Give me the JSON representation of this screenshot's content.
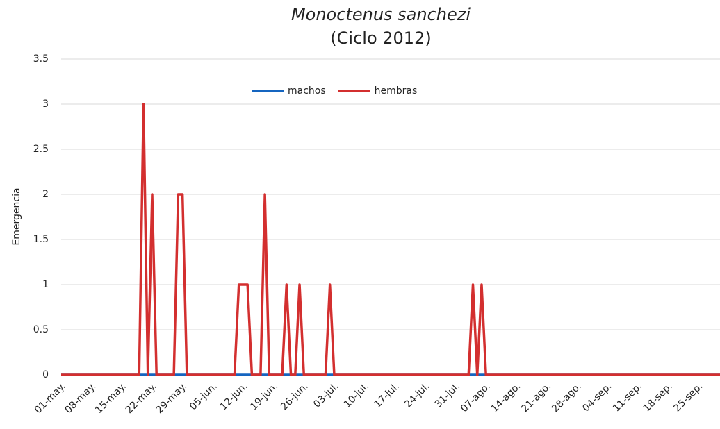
{
  "chart_data": {
    "type": "line",
    "title": "Monoctenus sanchezi",
    "subtitle": "(Ciclo 2012)",
    "y_label": "Emergencia",
    "categories": [
      "01-may.",
      null,
      null,
      null,
      null,
      null,
      null,
      "08-may.",
      null,
      null,
      null,
      null,
      null,
      null,
      "15-may.",
      null,
      null,
      null,
      null,
      null,
      null,
      "22-may.",
      null,
      null,
      null,
      null,
      null,
      null,
      "29-may.",
      null,
      null,
      null,
      null,
      null,
      null,
      "05-jun.",
      null,
      null,
      null,
      null,
      null,
      null,
      "12-jun.",
      null,
      null,
      null,
      null,
      null,
      null,
      "19-jun.",
      null,
      null,
      null,
      null,
      null,
      null,
      "26-jun.",
      null,
      null,
      null,
      null,
      null,
      null,
      "03-jul.",
      null,
      null,
      null,
      null,
      null,
      null,
      "10-jul.",
      null,
      null,
      null,
      null,
      null,
      null,
      "17-jul.",
      null,
      null,
      null,
      null,
      null,
      null,
      "24-jul.",
      null,
      null,
      null,
      null,
      null,
      null,
      "31-jul.",
      null,
      null,
      null,
      null,
      null,
      null,
      "07-ago.",
      null,
      null,
      null,
      null,
      null,
      null,
      "14-ago.",
      null,
      null,
      null,
      null,
      null,
      null,
      "21-ago.",
      null,
      null,
      null,
      null,
      null,
      null,
      "28-ago.",
      null,
      null,
      null,
      null,
      null,
      null,
      "04-sep.",
      null,
      null,
      null,
      null,
      null,
      null,
      "11-sep.",
      null,
      null,
      null,
      null,
      null,
      null,
      "18-sep.",
      null,
      null,
      null,
      null,
      null,
      null,
      "25-sep.",
      null,
      null,
      null,
      null,
      null
    ],
    "series": [
      {
        "name": "machos",
        "color": "#1565c0",
        "values": [
          0,
          0,
          0,
          0,
          0,
          0,
          0,
          0,
          0,
          0,
          0,
          0,
          0,
          0,
          0,
          0,
          0,
          0,
          0,
          0,
          0,
          0,
          0,
          0,
          0,
          0,
          0,
          0,
          0,
          0,
          0,
          0,
          0,
          0,
          0,
          0,
          0,
          0,
          0,
          0,
          0,
          0,
          0,
          0,
          0,
          0,
          0,
          0,
          0,
          0,
          0,
          0,
          0,
          0,
          0,
          0,
          0,
          0,
          0,
          0,
          0,
          0,
          0,
          0,
          0,
          0,
          0,
          0,
          0,
          0,
          0,
          0,
          0,
          0,
          0,
          0,
          0,
          0,
          0,
          0,
          0,
          0,
          0,
          0,
          0,
          0,
          0,
          0,
          0,
          0,
          0,
          0,
          0,
          0,
          0,
          0,
          0,
          0,
          0,
          0,
          0,
          0,
          0,
          0,
          0,
          0,
          0,
          0,
          0,
          0,
          0,
          0,
          0,
          0,
          0,
          0,
          0,
          0,
          0,
          0,
          0,
          0,
          0,
          0,
          0,
          0,
          0,
          0,
          0,
          0,
          0,
          0,
          0,
          0,
          0,
          0,
          0,
          0,
          0,
          0,
          0,
          0,
          0,
          0,
          0,
          0,
          0,
          0,
          0,
          0,
          0,
          0,
          0
        ]
      },
      {
        "name": "hembras",
        "color": "#d32f2f",
        "values": [
          0,
          0,
          0,
          0,
          0,
          0,
          0,
          0,
          0,
          0,
          0,
          0,
          0,
          0,
          0,
          0,
          0,
          0,
          0,
          3,
          0,
          2,
          0,
          0,
          0,
          0,
          0,
          2,
          2,
          0,
          0,
          0,
          0,
          0,
          0,
          0,
          0,
          0,
          0,
          0,
          0,
          1,
          1,
          1,
          0,
          0,
          0,
          2,
          0,
          0,
          0,
          0,
          1,
          0,
          0,
          1,
          0,
          0,
          0,
          0,
          0,
          0,
          1,
          0,
          0,
          0,
          0,
          0,
          0,
          0,
          0,
          0,
          0,
          0,
          0,
          0,
          0,
          0,
          0,
          0,
          0,
          0,
          0,
          0,
          0,
          0,
          0,
          0,
          0,
          0,
          0,
          0,
          0,
          0,
          0,
          1,
          0,
          1,
          0,
          0,
          0,
          0,
          0,
          0,
          0,
          0,
          0,
          0,
          0,
          0,
          0,
          0,
          0,
          0,
          0,
          0,
          0,
          0,
          0,
          0,
          0,
          0,
          0,
          0,
          0,
          0,
          0,
          0,
          0,
          0,
          0,
          0,
          0,
          0,
          0,
          0,
          0,
          0,
          0,
          0,
          0,
          0,
          0,
          0,
          0,
          0,
          0,
          0,
          0,
          0,
          0,
          0,
          0
        ]
      }
    ],
    "ylim": [
      0,
      3.5
    ],
    "yticks": [
      0,
      0.5,
      1,
      1.5,
      2,
      2.5,
      3,
      3.5
    ],
    "grid": true
  }
}
